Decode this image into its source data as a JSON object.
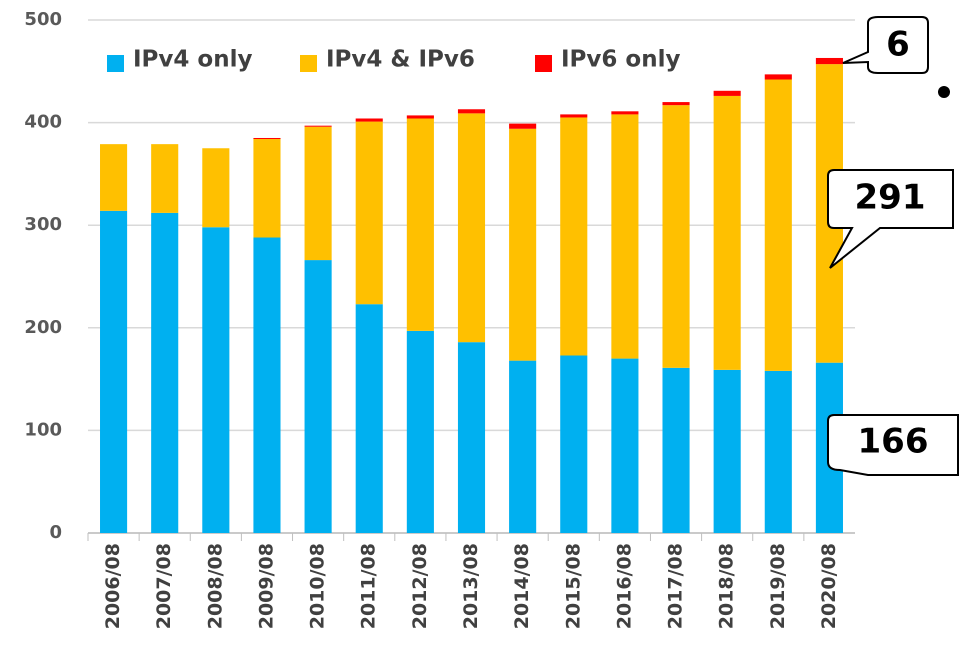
{
  "chart_data": {
    "type": "stacked_bar",
    "categories": [
      "2006/08",
      "2007/08",
      "2008/08",
      "2009/08",
      "2010/08",
      "2011/08",
      "2012/08",
      "2013/08",
      "2014/08",
      "2015/08",
      "2016/08",
      "2017/08",
      "2018/08",
      "2019/08",
      "2020/08"
    ],
    "series": [
      {
        "name": "IPv4 only",
        "color": "#00b0f0",
        "values": [
          314,
          312,
          298,
          288,
          266,
          223,
          197,
          186,
          168,
          173,
          170,
          161,
          159,
          158,
          166
        ]
      },
      {
        "name": "IPv4 & IPv6",
        "color": "#ffc000",
        "values": [
          65,
          67,
          77,
          96,
          130,
          178,
          207,
          223,
          226,
          232,
          238,
          256,
          267,
          284,
          291
        ]
      },
      {
        "name": "IPv6 only",
        "color": "#ff0000",
        "values": [
          0,
          0,
          0,
          1,
          1,
          3,
          3,
          4,
          5,
          3,
          3,
          3,
          5,
          5,
          6
        ]
      }
    ],
    "ylim": [
      0,
      500
    ],
    "yticks": [
      0,
      100,
      200,
      300,
      400,
      500
    ],
    "grid": true
  }
}
